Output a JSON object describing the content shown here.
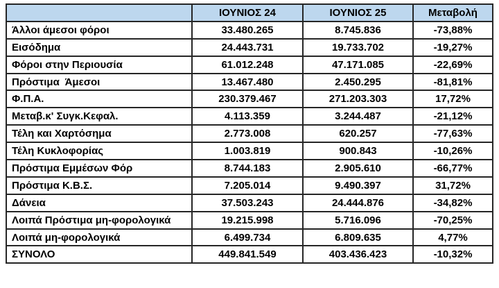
{
  "table": {
    "columns": [
      "",
      "ΙΟΥΝΙΟΣ 24",
      "ΙΟΥΝΙΟΣ 25",
      "Μεταβολή"
    ],
    "rows": [
      [
        "Άλλοι άμεσοι φόροι",
        "33.480.265",
        "8.745.836",
        "-73,88%"
      ],
      [
        "Εισόδημα",
        "24.443.731",
        "19.733.702",
        "-19,27%"
      ],
      [
        "Φόροι στην Περιουσία",
        "61.012.248",
        "47.171.085",
        "-22,69%"
      ],
      [
        "Πρόστιμα  Άμεσοι",
        "13.467.480",
        "2.450.295",
        "-81,81%"
      ],
      [
        "Φ.Π.Α.",
        "230.379.467",
        "271.203.303",
        "17,72%"
      ],
      [
        "Μεταβ.κ' Συγκ.Κεφαλ.",
        "4.113.359",
        "3.244.487",
        "-21,12%"
      ],
      [
        "Τέλη και Χαρτόσημα",
        "2.773.008",
        "620.257",
        "-77,63%"
      ],
      [
        "Τέλη Κυκλοφορίας",
        "1.003.819",
        "900.843",
        "-10,26%"
      ],
      [
        "Πρόστιμα Εμμέσων Φόρ",
        "8.744.183",
        "2.905.610",
        "-66,77%"
      ],
      [
        "Πρόστιμα Κ.Β.Σ.",
        "7.205.014",
        "9.490.397",
        "31,72%"
      ],
      [
        "Δάνεια",
        "37.503.243",
        "24.444.876",
        "-34,82%"
      ],
      [
        "Λοιπά Πρόστιμα μη-φορολογικά",
        "19.215.998",
        "5.716.096",
        "-70,25%"
      ],
      [
        "Λοιπά μη-φορολογικά",
        "6.499.734",
        "6.809.635",
        "4,77%"
      ],
      [
        "ΣΥΝΟΛΟ",
        "449.841.549",
        "403.436.423",
        "-10,32%"
      ]
    ]
  },
  "colors": {
    "header_bg": "#BDD7EE",
    "border": "#262626",
    "text": "#000000",
    "page_bg": "#FFFFFF"
  },
  "chart_data": {
    "type": "table",
    "title": "",
    "categories": [
      "Άλλοι άμεσοι φόροι",
      "Εισόδημα",
      "Φόροι στην Περιουσία",
      "Πρόστιμα Άμεσοι",
      "Φ.Π.Α.",
      "Μεταβ.κ' Συγκ.Κεφαλ.",
      "Τέλη και Χαρτόσημα",
      "Τέλη Κυκλοφορίας",
      "Πρόστιμα Εμμέσων Φόρ",
      "Πρόστιμα Κ.Β.Σ.",
      "Δάνεια",
      "Λοιπά Πρόστιμα μη-φορολογικά",
      "Λοιπά μη-φορολογικά",
      "ΣΥΝΟΛΟ"
    ],
    "series": [
      {
        "name": "ΙΟΥΝΙΟΣ 24",
        "values": [
          33480265,
          24443731,
          61012248,
          13467480,
          230379467,
          4113359,
          2773008,
          1003819,
          8744183,
          7205014,
          37503243,
          19215998,
          6499734,
          449841549
        ]
      },
      {
        "name": "ΙΟΥΝΙΟΣ 25",
        "values": [
          8745836,
          19733702,
          47171085,
          2450295,
          271203303,
          3244487,
          620257,
          900843,
          2905610,
          9490397,
          24444876,
          5716096,
          6809635,
          403436423
        ]
      },
      {
        "name": "Μεταβολή (%)",
        "values": [
          -73.88,
          -19.27,
          -22.69,
          -81.81,
          17.72,
          -21.12,
          -77.63,
          -10.26,
          -66.77,
          31.72,
          -34.82,
          -70.25,
          4.77,
          -10.32
        ]
      }
    ]
  }
}
